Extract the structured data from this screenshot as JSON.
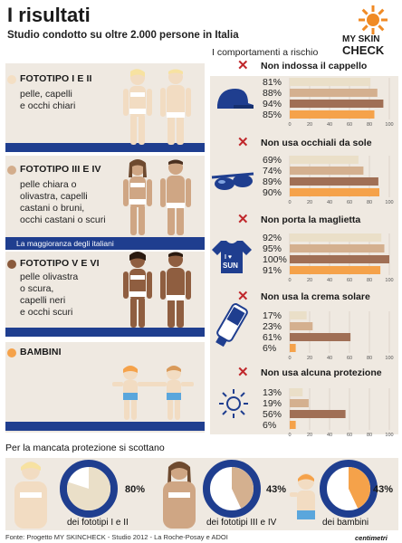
{
  "title": "I risultati",
  "subtitle": "Studio condotto su oltre 2.000 persone in Italia",
  "logo": {
    "line1": "MY SKIN",
    "line2": "CHECK",
    "icon": "sun-logo-icon",
    "color": "#f08a24"
  },
  "phototypes": [
    {
      "title": "FOTOTIPO I E II",
      "desc": [
        "pelle, capelli",
        "e occhi chiari"
      ],
      "dot_color": "#f4dfc4"
    },
    {
      "title": "FOTOTIPO III E IV",
      "desc": [
        "pelle chiara o",
        "olivastra, capelli",
        "castani o bruni,",
        "occhi castani o scuri"
      ],
      "dot_color": "#d3ad8c",
      "note": "La maggioranza degli italiani"
    },
    {
      "title": "FOTOTIPO V E VI",
      "desc": [
        "pelle olivastra",
        "o scura,",
        "capelli neri",
        "e occhi scuri"
      ],
      "dot_color": "#8a5a3c"
    },
    {
      "title": "BAMBINI",
      "desc": [],
      "dot_color": "#f5a24a"
    }
  ],
  "right_header": "I comportamenti a rischio",
  "colors": {
    "fototipo_1_2": "#eadfc8",
    "fototipo_3_4": "#d4b08f",
    "fototipo_5_6": "#a06f55",
    "bambini": "#f5a24a",
    "blue": "#1f3e8f",
    "cross": "#c0282c"
  },
  "chart_data": {
    "type": "bar",
    "orientation": "horizontal",
    "xlim": [
      0,
      100
    ],
    "ticks": [
      "0",
      "20",
      "40",
      "60",
      "80",
      "100"
    ],
    "series_order": [
      "FOTOTIPO I E II",
      "FOTOTIPO III E IV",
      "FOTOTIPO V E VI",
      "BAMBINI"
    ],
    "groups": [
      {
        "label": "Non indossa il cappello",
        "icon": "cap-icon",
        "labels": [
          "81%",
          "88%",
          "94%",
          "85%"
        ],
        "values": [
          81,
          88,
          94,
          85
        ]
      },
      {
        "label": "Non usa occhiali da sole",
        "icon": "sunglasses-icon",
        "labels": [
          "69%",
          "74%",
          "89%",
          "90%"
        ],
        "values": [
          69,
          74,
          89,
          90
        ]
      },
      {
        "label": "Non porta la maglietta",
        "icon": "tshirt-icon",
        "labels": [
          "92%",
          "95%",
          "100%",
          "91%"
        ],
        "values": [
          92,
          95,
          100,
          91
        ]
      },
      {
        "label": "Non usa la crema solare",
        "icon": "sunscreen-icon",
        "labels": [
          "17%",
          "23%",
          "61%",
          "6%"
        ],
        "values": [
          17,
          23,
          61,
          6
        ]
      },
      {
        "label": "Non usa alcuna protezione",
        "icon": "sun-icon",
        "labels": [
          "13%",
          "19%",
          "56%",
          "6%"
        ],
        "values": [
          13,
          19,
          56,
          6
        ]
      }
    ]
  },
  "bottom": {
    "title": "Per la mancata protezione si scottano",
    "items": [
      {
        "value": 80,
        "label": "80%",
        "caption": "dei fototipi I e II",
        "color": "#eadfc8"
      },
      {
        "value": 43,
        "label": "43%",
        "caption": "dei fototipi III e IV",
        "color": "#d4b08f"
      },
      {
        "value": 43,
        "label": "43%",
        "caption": "dei bambini",
        "color": "#f5a24a"
      }
    ]
  },
  "footer": "Fonte: Progetto MY SKINCHECK - Studio 2012 - La Roche-Posay e ADOI",
  "brand": "centimetri"
}
